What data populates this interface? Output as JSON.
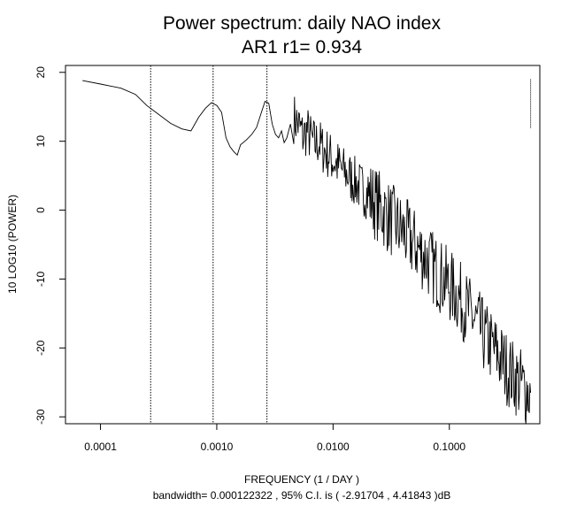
{
  "chart_data": {
    "type": "line",
    "title": "Power spectrum:  daily NAO index",
    "subtitle": "AR1 r1= 0.934",
    "xlabel": "FREQUENCY (1 / DAY )",
    "ylabel": "10 LOG10 (POWER)",
    "bandwidth_text": "bandwidth= 0.000122322 , 95% C.I. is ( -2.91704 , 4.41843 )dB",
    "x_scale": "log",
    "xlim": [
      5e-05,
      0.6
    ],
    "ylim": [
      -31,
      21
    ],
    "x_ticks": [
      {
        "value": 0.0001,
        "label": "0.0001"
      },
      {
        "value": 0.001,
        "label": "0.0010"
      },
      {
        "value": 0.01,
        "label": "0.0100"
      },
      {
        "value": 0.1,
        "label": "0.1000"
      }
    ],
    "y_ticks": [
      {
        "value": 20,
        "label": "20"
      },
      {
        "value": 10,
        "label": "10"
      },
      {
        "value": 0,
        "label": "0"
      },
      {
        "value": -10,
        "label": "-10"
      },
      {
        "value": -20,
        "label": "-20"
      },
      {
        "value": -30,
        "label": "-30"
      }
    ],
    "reference_lines_x": [
      0.00027,
      0.00093,
      0.0027
    ],
    "ci_bar": {
      "x": 0.5,
      "y_low": 11.8,
      "y_high": 19.0
    },
    "series": [
      {
        "name": "spectrum",
        "x": [
          7e-05,
          0.0001,
          0.00015,
          0.0002,
          0.00025,
          0.0003,
          0.0004,
          0.0005,
          0.0006,
          0.0007,
          0.0008,
          0.0009,
          0.001,
          0.0011,
          0.0012,
          0.0013,
          0.0014,
          0.0015,
          0.0016,
          0.0018,
          0.002,
          0.0022,
          0.0024,
          0.0026,
          0.0028,
          0.003,
          0.0032,
          0.0034,
          0.0036,
          0.0038,
          0.004,
          0.0043,
          0.0046,
          0.005,
          0.0055,
          0.006,
          0.0065,
          0.007,
          0.0075,
          0.008,
          0.009,
          0.01,
          0.011,
          0.012,
          0.014,
          0.016,
          0.018,
          0.02,
          0.025,
          0.03,
          0.035,
          0.04,
          0.05,
          0.06,
          0.07,
          0.08,
          0.1,
          0.12,
          0.15,
          0.18,
          0.2,
          0.25,
          0.3,
          0.35,
          0.4,
          0.45,
          0.5
        ],
        "values": [
          18.8,
          18.3,
          17.7,
          16.8,
          15.2,
          14.2,
          12.6,
          11.8,
          11.5,
          13.5,
          14.8,
          15.6,
          15.2,
          14.2,
          10.5,
          9.2,
          8.5,
          8.0,
          9.5,
          10.2,
          11.0,
          12.0,
          14.0,
          15.8,
          15.5,
          12.5,
          11.0,
          10.5,
          11.5,
          9.8,
          10.5,
          12.5,
          13.4,
          12.5,
          10.8,
          11.5,
          10.2,
          9.5,
          10.0,
          9.0,
          8.2,
          7.2,
          6.5,
          5.8,
          4.8,
          3.8,
          3.0,
          2.2,
          0.5,
          -1.0,
          -2.2,
          -3.2,
          -5.0,
          -6.5,
          -8.0,
          -9.2,
          -11.0,
          -12.5,
          -15.0,
          -17.0,
          -18.5,
          -20.5,
          -22.5,
          -24.0,
          -25.0,
          -26.0,
          -26.5
        ]
      }
    ]
  }
}
